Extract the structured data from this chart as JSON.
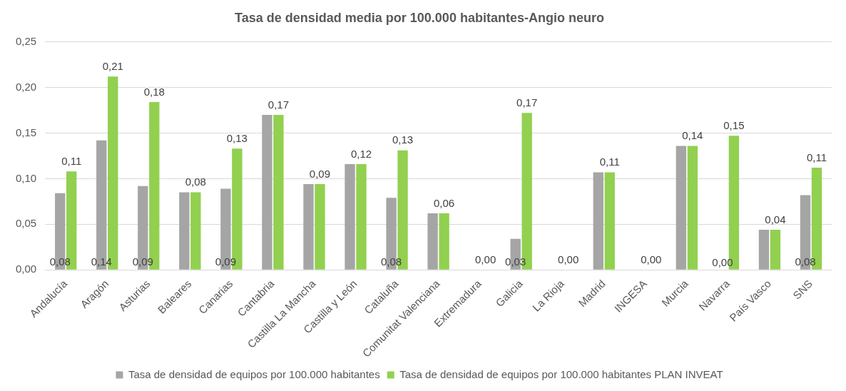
{
  "chart_data": {
    "type": "bar",
    "title": "Tasa de densidad media por 100.000 habitantes-Angio neuro",
    "categories": [
      "Andalucía",
      "Aragón",
      "Asturias",
      "Baleares",
      "Canarias",
      "Cantabria",
      "Castilla La Mancha",
      "Castilla y León",
      "Cataluña",
      "Comunitat Valenciana",
      "Extremadura",
      "Galicia",
      "La Rioja",
      "Madrid",
      "INGESA",
      "Murcia",
      "Navarra",
      "País Vasco",
      "SNS"
    ],
    "series": [
      {
        "name": "Tasa de densidad de equipos por 100.000 habitantes",
        "color": "#a5a5a5",
        "values": [
          0.084,
          0.142,
          0.092,
          0.085,
          0.089,
          0.17,
          0.094,
          0.116,
          0.079,
          0.062,
          0,
          0.034,
          0,
          0.107,
          0,
          0.136,
          0,
          0.044,
          0.082
        ],
        "value_labels": [
          "0,08",
          "0,14",
          "0,09",
          null,
          "0,09",
          null,
          null,
          null,
          "0,08",
          null,
          null,
          "0,03",
          null,
          null,
          null,
          null,
          "0,00",
          null,
          "0,08"
        ]
      },
      {
        "name": "Tasa de densidad de equipos por 100.000 habitantes PLAN INVEAT",
        "color": "#92d050",
        "values": [
          0.108,
          0.212,
          0.184,
          0.085,
          0.133,
          0.17,
          0.094,
          0.116,
          0.131,
          0.062,
          0,
          0.172,
          0,
          0.107,
          0,
          0.136,
          0.147,
          0.044,
          0.112
        ],
        "value_labels": [
          "0,11",
          "0,21",
          "0,18",
          "0,08",
          "0,13",
          "0,17",
          "0,09",
          "0,12",
          "0,13",
          "0,06",
          "0,00",
          "0,17",
          "0,00",
          "0,11",
          "0,00",
          "0,14",
          "0,15",
          "0,04",
          "0,11"
        ]
      }
    ],
    "ylim": [
      0,
      0.25
    ],
    "yticks": [
      {
        "value": 0,
        "label": "0,00"
      },
      {
        "value": 0.05,
        "label": "0,05"
      },
      {
        "value": 0.1,
        "label": "0,10"
      },
      {
        "value": 0.15,
        "label": "0,15"
      },
      {
        "value": 0.2,
        "label": "0,20"
      },
      {
        "value": 0.25,
        "label": "0,25"
      }
    ],
    "grid": "y",
    "legend": "bottom"
  }
}
